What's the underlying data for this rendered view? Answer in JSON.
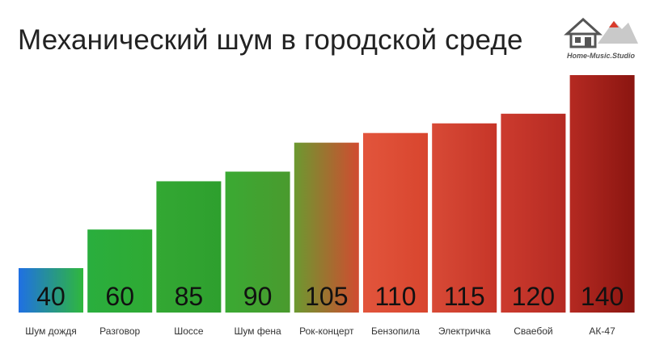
{
  "chart_data": {
    "type": "bar",
    "title": "Механический шум в городской среде",
    "categories": [
      "Шум дождя",
      "Разговор",
      "Шоссе",
      "Шум фена",
      "Рок-концерт",
      "Бензопила",
      "Электричка",
      "Сваебой",
      "АК-47"
    ],
    "values": [
      40,
      60,
      85,
      90,
      105,
      110,
      115,
      120,
      140
    ],
    "bar_colors": [
      [
        "#1f6fe6",
        "#2fb83a"
      ],
      [
        "#2aae3e",
        "#2faa33"
      ],
      [
        "#33a833",
        "#2e9f2e"
      ],
      [
        "#3aaa33",
        "#4a9a2e"
      ],
      [
        "#6a9a30",
        "#d24a30"
      ],
      [
        "#e2553c",
        "#d8452e"
      ],
      [
        "#d84a36",
        "#c63528"
      ],
      [
        "#cc3b2e",
        "#b52a22"
      ],
      [
        "#b52a22",
        "#8a1510"
      ]
    ],
    "xlabel": "",
    "ylabel": "",
    "grid": false,
    "legend": "none"
  },
  "logo": {
    "text": "Home-Music.Studio",
    "colors": [
      "#555555",
      "#d93b2b"
    ]
  }
}
